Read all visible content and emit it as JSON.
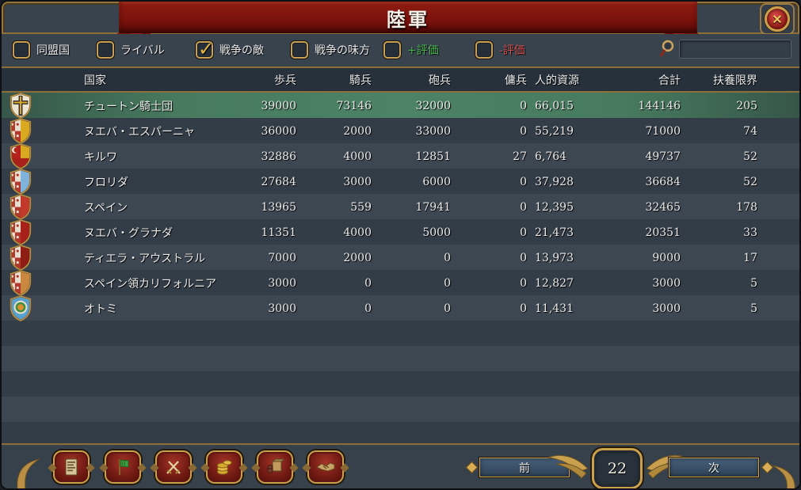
{
  "title": "陸軍",
  "close_icon": "close-icon",
  "filters": [
    {
      "label": "同盟国",
      "checked": false,
      "label_color": "#e9e9e9"
    },
    {
      "label": "ライバル",
      "checked": false,
      "label_color": "#e9e9e9"
    },
    {
      "label": "戦争の敵",
      "checked": true,
      "label_color": "#e9e9e9"
    },
    {
      "label": "戦争の味方",
      "checked": false,
      "label_color": "#e9e9e9"
    },
    {
      "label": "+評価",
      "checked": false,
      "label_color": "#49b54f"
    },
    {
      "label": "-評価",
      "checked": false,
      "label_color": "#d05151"
    }
  ],
  "search": {
    "value": "",
    "icon": "magnifier-icon"
  },
  "table": {
    "columns": {
      "country": "国家",
      "infantry": "歩兵",
      "cavalry": "騎兵",
      "artillery": "砲兵",
      "mercenaries": "傭兵",
      "manpower": "人的資源",
      "total": "合計",
      "force_limit": "扶養限界"
    },
    "rows": [
      {
        "country": "チュートン騎士団",
        "infantry": "39000",
        "cavalry": "73146",
        "artillery": "32000",
        "mercenaries": "0",
        "manpower": "66,015",
        "total": "144146",
        "force_limit": "205",
        "highlighted": true,
        "shield": {
          "type": "teutonic",
          "right": "#ece5d4"
        }
      },
      {
        "country": "ヌエバ・エスパーニャ",
        "infantry": "36000",
        "cavalry": "2000",
        "artillery": "33000",
        "mercenaries": "0",
        "manpower": "55,219",
        "total": "71000",
        "force_limit": "74",
        "highlighted": false,
        "shield": {
          "type": "castile-split",
          "right": "#d9a920"
        }
      },
      {
        "country": "キルワ",
        "infantry": "32886",
        "cavalry": "4000",
        "artillery": "12851",
        "mercenaries": "27",
        "manpower": "6,764",
        "total": "49737",
        "force_limit": "52",
        "highlighted": false,
        "shield": {
          "type": "kilwa",
          "right": "#d9a920"
        }
      },
      {
        "country": "フロリダ",
        "infantry": "27684",
        "cavalry": "3000",
        "artillery": "6000",
        "mercenaries": "0",
        "manpower": "37,928",
        "total": "36684",
        "force_limit": "52",
        "highlighted": false,
        "shield": {
          "type": "castile-split",
          "right": "#7fb3dc"
        }
      },
      {
        "country": "スペイン",
        "infantry": "13965",
        "cavalry": "559",
        "artillery": "17941",
        "mercenaries": "0",
        "manpower": "12,395",
        "total": "32465",
        "force_limit": "178",
        "highlighted": false,
        "shield": {
          "type": "castile-split",
          "right": "#c0392b"
        }
      },
      {
        "country": "ヌエバ・グラナダ",
        "infantry": "11351",
        "cavalry": "4000",
        "artillery": "5000",
        "mercenaries": "0",
        "manpower": "21,473",
        "total": "20351",
        "force_limit": "33",
        "highlighted": false,
        "shield": {
          "type": "castile-split",
          "right": "#a8201a"
        }
      },
      {
        "country": "ティエラ・アウストラル",
        "infantry": "7000",
        "cavalry": "2000",
        "artillery": "0",
        "mercenaries": "0",
        "manpower": "13,973",
        "total": "9000",
        "force_limit": "17",
        "highlighted": false,
        "shield": {
          "type": "castile-split",
          "right": "#8e1d15"
        }
      },
      {
        "country": "スペイン領カリフォルニア",
        "infantry": "3000",
        "cavalry": "0",
        "artillery": "0",
        "mercenaries": "0",
        "manpower": "12,827",
        "total": "3000",
        "force_limit": "5",
        "highlighted": false,
        "shield": {
          "type": "castile-split",
          "right": "#c9873f"
        }
      },
      {
        "country": "オトミ",
        "infantry": "3000",
        "cavalry": "0",
        "artillery": "0",
        "mercenaries": "0",
        "manpower": "11,431",
        "total": "3000",
        "force_limit": "5",
        "highlighted": false,
        "shield": {
          "type": "otomi",
          "right": "#5aa0cf"
        }
      }
    ]
  },
  "pager": {
    "prev_label": "前",
    "page_number": "22",
    "next_label": "次"
  },
  "toolbar": {
    "buttons": [
      {
        "icon": "document-icon"
      },
      {
        "icon": "flag-icon"
      },
      {
        "icon": "crossed-swords-icon"
      },
      {
        "icon": "coins-icon"
      },
      {
        "icon": "goods-icon"
      },
      {
        "icon": "handshake-icon"
      }
    ]
  },
  "colors": {
    "highlight_row": "#4d8266",
    "banner_red": "#7c130d",
    "gold": "#c9a04e",
    "positive": "#49b54f",
    "negative": "#d05151"
  }
}
